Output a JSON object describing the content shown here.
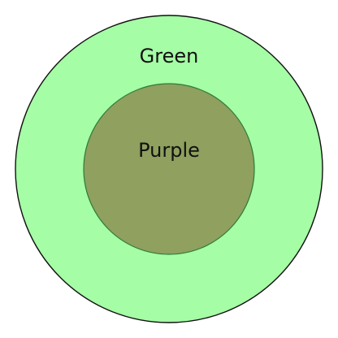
{
  "diagram": {
    "outer": {
      "label": "Green",
      "fill": "#a5fda5",
      "stroke": "#111111"
    },
    "inner": {
      "label": "Purple",
      "fill": "#8fa05f",
      "stroke": "#2f7a3a"
    }
  }
}
